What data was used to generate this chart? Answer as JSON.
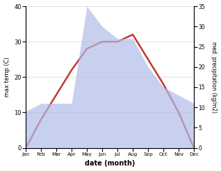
{
  "months": [
    "Jan",
    "Feb",
    "Mar",
    "Apr",
    "May",
    "Jun",
    "Jul",
    "Aug",
    "Sep",
    "Oct",
    "Nov",
    "Dec"
  ],
  "temperature": [
    0,
    8,
    15,
    22,
    28,
    30,
    30,
    32,
    25,
    18,
    10,
    0
  ],
  "precipitation": [
    9,
    11,
    11,
    11,
    35,
    30,
    27,
    27,
    20,
    15,
    13,
    11
  ],
  "temp_color": "#c0392b",
  "precip_fill_color": "#b0bce8",
  "xlabel": "date (month)",
  "ylabel_left": "max temp (C)",
  "ylabel_right": "med. precipitation (kg/m2)",
  "ylim_left": [
    0,
    40
  ],
  "ylim_right": [
    0,
    35
  ],
  "yticks_left": [
    0,
    10,
    20,
    30,
    40
  ],
  "yticks_right": [
    0,
    5,
    10,
    15,
    20,
    25,
    30,
    35
  ],
  "background_color": "#ffffff",
  "grid_color": "#d0d0d0"
}
